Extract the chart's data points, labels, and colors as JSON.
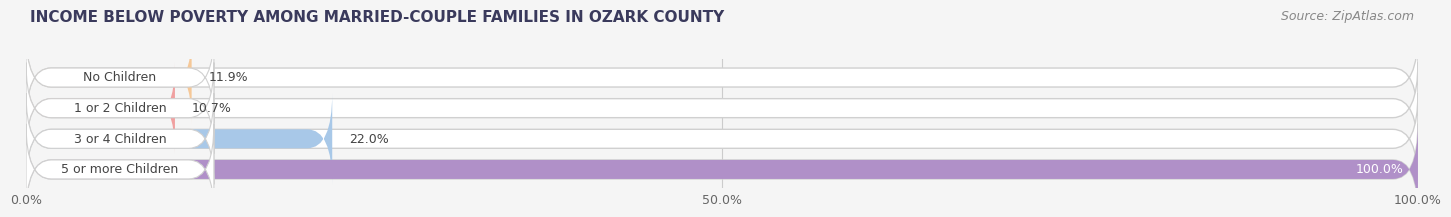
{
  "title": "INCOME BELOW POVERTY AMONG MARRIED-COUPLE FAMILIES IN OZARK COUNTY",
  "source": "Source: ZipAtlas.com",
  "categories": [
    "No Children",
    "1 or 2 Children",
    "3 or 4 Children",
    "5 or more Children"
  ],
  "values": [
    11.9,
    10.7,
    22.0,
    100.0
  ],
  "max_value": 100.0,
  "bar_colors": [
    "#f5c898",
    "#f0a0a0",
    "#a8c8e8",
    "#b090c8"
  ],
  "track_color": "#e8e8e8",
  "track_border_color": "#d0d0d0",
  "label_colors": [
    "#333333",
    "#333333",
    "#333333",
    "#ffffff"
  ],
  "label_annotations": [
    "11.9%",
    "10.7%",
    "22.0%",
    "100.0%"
  ],
  "xticks": [
    0.0,
    50.0,
    100.0
  ],
  "xtick_labels": [
    "0.0%",
    "50.0%",
    "100.0%"
  ],
  "title_fontsize": 11,
  "source_fontsize": 9,
  "label_fontsize": 9,
  "cat_fontsize": 9,
  "tick_fontsize": 9,
  "background_color": "#f5f5f5",
  "bar_height": 0.62,
  "bar_gap": 0.15
}
